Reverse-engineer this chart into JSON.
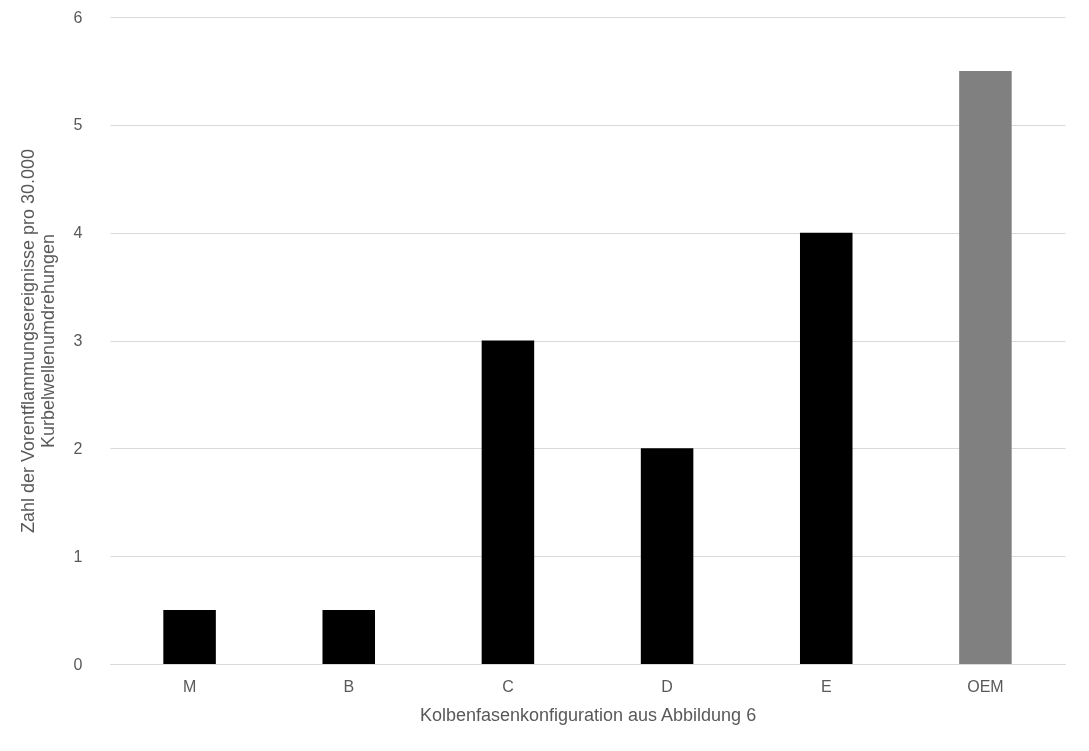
{
  "chart_data": {
    "type": "bar",
    "xlabel": "Kolbenfasenkonfiguration aus Abbildung 6",
    "ylabel": "Zahl der Vorentflammungsereignisse pro 30.000 Kurbelwellenumdrehungen",
    "categories": [
      "M",
      "B",
      "C",
      "D",
      "E",
      "OEM"
    ],
    "values": [
      0.5,
      0.5,
      3,
      2,
      4,
      5.5
    ],
    "colors": [
      "#000000",
      "#000000",
      "#000000",
      "#000000",
      "#000000",
      "#808080"
    ],
    "ylim": [
      0,
      6
    ],
    "yticks": [
      0,
      1,
      2,
      3,
      4,
      5,
      6
    ],
    "grid": "y"
  }
}
